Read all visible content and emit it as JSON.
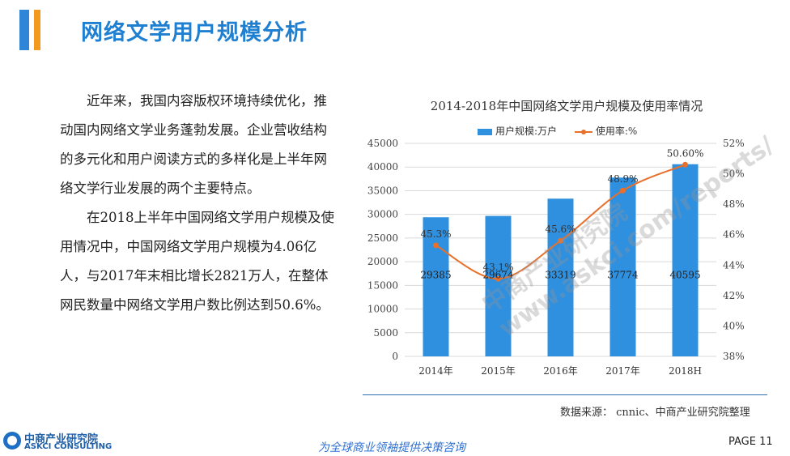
{
  "header": {
    "title": "网络文学用户规模分析"
  },
  "body": {
    "paragraphs": [
      "近年来，我国内容版权环境持续优化，推动国内网络文学业务蓬勃发展。企业营收结构的多元化和用户阅读方式的多样化是上半年网络文学行业发展的两个主要特点。",
      "在2018上半年中国网络文学用户规模及使用情况中，中国网络文学用户规模为4.06亿人，与2017年末相比增长2821万人，在整体网民数量中网络文学用户数比例达到50.6%。"
    ]
  },
  "chart_data": {
    "type": "bar",
    "title": "2014-2018年中国网络文学用户规模及使用率情况",
    "categories": [
      "2014年",
      "2015年",
      "2016年",
      "2017年",
      "2018H"
    ],
    "series": [
      {
        "name": "用户规模:万户",
        "type": "bar",
        "values": [
          29385,
          29674,
          33319,
          37774,
          40595
        ],
        "labels": [
          "29385",
          "29674",
          "33319",
          "37774",
          "40595"
        ],
        "color": "#2f90e0"
      },
      {
        "name": "使用率:%",
        "type": "line",
        "values": [
          45.3,
          43.1,
          45.6,
          48.9,
          50.6
        ],
        "labels": [
          "45.3%",
          "43.1%",
          "45.6%",
          "48.9%",
          "50.60%"
        ],
        "color": "#e8702a"
      }
    ],
    "y_left": {
      "min": 0,
      "max": 45000,
      "step": 5000,
      "ticks": [
        "0",
        "5000",
        "10000",
        "15000",
        "20000",
        "25000",
        "30000",
        "35000",
        "40000",
        "45000"
      ]
    },
    "y_right": {
      "min": 38,
      "max": 52,
      "step": 2,
      "ticks": [
        "38%",
        "40%",
        "42%",
        "44%",
        "46%",
        "48%",
        "50%",
        "52%"
      ]
    }
  },
  "watermark": {
    "text": "中商产业研究院 www.askci.com/reports/"
  },
  "source": "数据来源： cnnic、中商产业研究院整理",
  "footer": {
    "logo_cn": "中商产业研究院",
    "logo_en": "ASKCI CONSULTING",
    "slogan": "为全球商业领袖提供决策咨询",
    "page": "PAGE  11"
  }
}
